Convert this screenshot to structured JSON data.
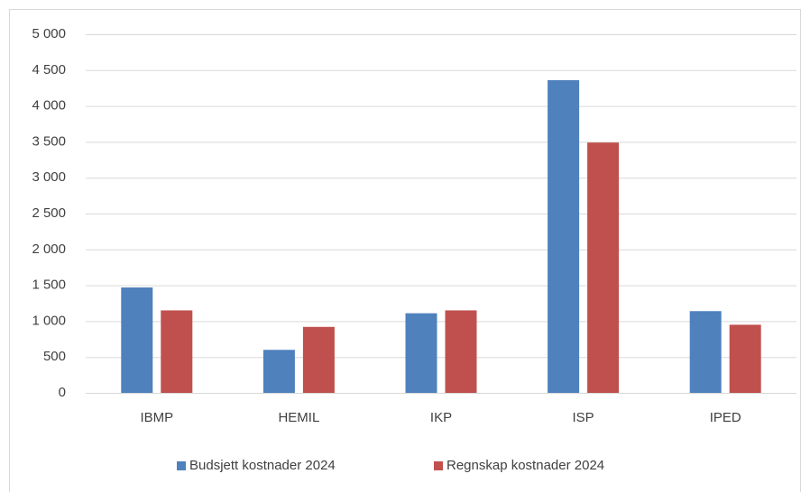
{
  "chart_data": {
    "type": "bar",
    "categories": [
      "IBMP",
      "HEMIL",
      "IKP",
      "ISP",
      "IPED"
    ],
    "series": [
      {
        "name": "Budsjett kostnader 2024",
        "color": "#4f81bd",
        "values": [
          1470,
          600,
          1110,
          4360,
          1140
        ]
      },
      {
        "name": "Regnskap kostnader 2024",
        "color": "#c0504d",
        "values": [
          1150,
          920,
          1150,
          3490,
          950
        ]
      }
    ],
    "ylim": [
      0,
      5000
    ],
    "yticks": [
      0,
      500,
      {
        "value": 1000,
        "label": "1 000"
      },
      {
        "value": 1500,
        "label": "1 500"
      },
      {
        "value": 2000,
        "label": "2 000"
      },
      {
        "value": 2500,
        "label": "2 500"
      },
      {
        "value": 3000,
        "label": "3 000"
      },
      {
        "value": 3500,
        "label": "3 500"
      },
      {
        "value": 4000,
        "label": "4 000"
      },
      {
        "value": 4500,
        "label": "4 500"
      },
      {
        "value": 5000,
        "label": "5 000"
      }
    ],
    "grid": true,
    "legend": "bottom"
  }
}
